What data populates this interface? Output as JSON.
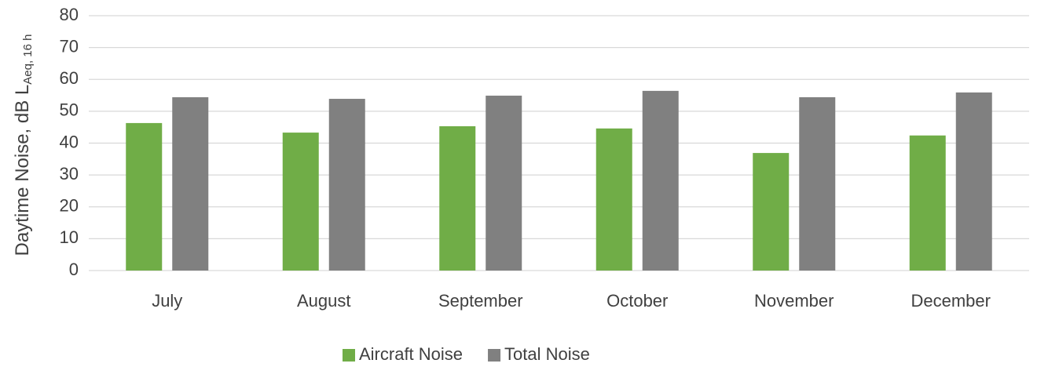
{
  "chart_data": {
    "type": "bar",
    "ylabel": "Daytime Noise, dB L",
    "ylabel_subscript": "Aeq, 16 h",
    "categories": [
      "July",
      "August",
      "September",
      "October",
      "November",
      "December"
    ],
    "series": [
      {
        "name": "Aircraft Noise",
        "color": "#70ad47",
        "values": [
          46.3,
          43.3,
          45.3,
          44.6,
          36.9,
          42.4
        ]
      },
      {
        "name": "Total Noise",
        "color": "#808080",
        "values": [
          54.4,
          53.9,
          54.9,
          56.4,
          54.4,
          55.9
        ]
      }
    ],
    "ylim": [
      0,
      80
    ],
    "yticks": [
      0,
      10,
      20,
      30,
      40,
      50,
      60,
      70,
      80
    ],
    "grid": true,
    "legend": "bottom"
  }
}
